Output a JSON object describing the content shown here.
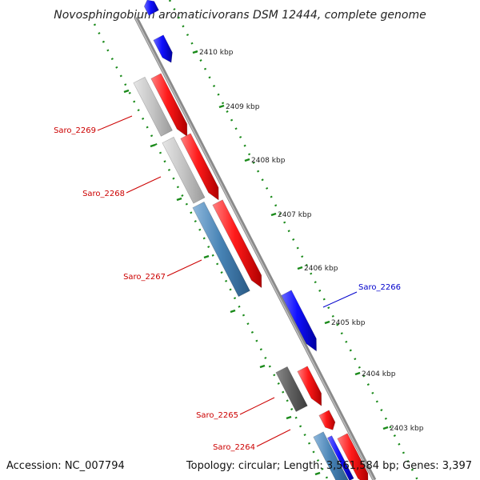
{
  "title": "Novosphingobium aromaticivorans DSM 12444, complete genome",
  "accession_text": "Accession: NC_007794",
  "summary_text": "Topology: circular; Length: 3,561,584 bp; Genes: 3,397",
  "colors": {
    "backbone": "#8a8a8a",
    "forward_gene": "#e00000",
    "reverse_gene": "#0000e6",
    "grey_gene": "#bdbdbd",
    "dark_gene": "#666666",
    "steel_gene": "#4682b4",
    "ruler_dots": "#1a8a1a",
    "label_red": "#cc0000",
    "label_blue": "#0000cc"
  },
  "ruler_ticks": [
    {
      "label": "2410 kbp"
    },
    {
      "label": "2409 kbp"
    },
    {
      "label": "2408 kbp"
    },
    {
      "label": "2407 kbp"
    },
    {
      "label": "2406 kbp"
    },
    {
      "label": "2405 kbp"
    },
    {
      "label": "2404 kbp"
    },
    {
      "label": "2403 kbp"
    }
  ],
  "genes": [
    {
      "name": "Saro_2269",
      "color_key": "grey_gene"
    },
    {
      "name": "Saro_2268",
      "color_key": "grey_gene"
    },
    {
      "name": "Saro_2267",
      "color_key": "steel_gene"
    },
    {
      "name": "Saro_2266",
      "color_key": "reverse_gene"
    },
    {
      "name": "Saro_2265",
      "color_key": "dark_gene"
    },
    {
      "name": "Saro_2264",
      "color_key": "steel_gene"
    }
  ]
}
